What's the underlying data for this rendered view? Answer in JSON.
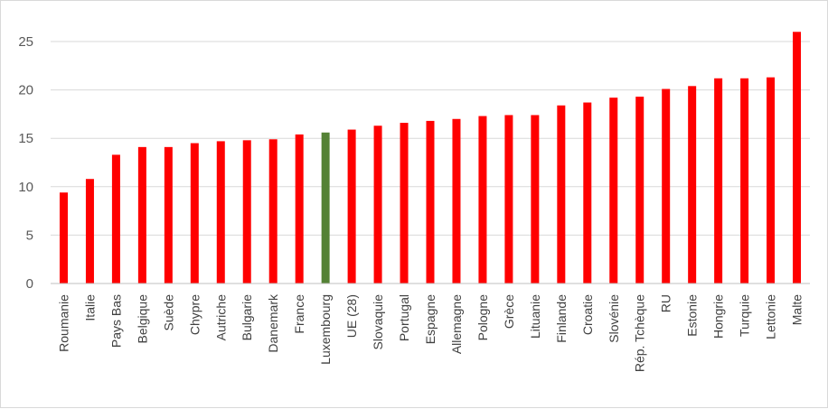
{
  "chart_data": {
    "type": "bar",
    "title": "",
    "xlabel": "",
    "ylabel": "",
    "ylim": [
      0,
      25
    ],
    "yticks": [
      0,
      5,
      10,
      15,
      20,
      25
    ],
    "grid": true,
    "legend": "none",
    "colors": {
      "default": "#ff0000",
      "highlight": "#548235",
      "grid": "#d9d9d9",
      "axis": "#bfbfbf"
    },
    "highlight_category": "Luxembourg",
    "categories": [
      "Roumanie",
      "Italie",
      "Pays Bas",
      "Belgique",
      "Suède",
      "Chypre",
      "Autriche",
      "Bulgarie",
      "Danemark",
      "France",
      "Luxembourg",
      "UE (28)",
      "Slovaquie",
      "Portugal",
      "Espagne",
      "Allemagne",
      "Pologne",
      "Grèce",
      "Lituanie",
      "Finlande",
      "Croatie",
      "Slovénie",
      "Rép. Tchèque",
      "RU",
      "Estonie",
      "Hongrie",
      "Turquie",
      "Lettonie",
      "Malte"
    ],
    "values": [
      9.4,
      10.8,
      13.3,
      14.1,
      14.1,
      14.5,
      14.7,
      14.8,
      14.9,
      15.4,
      15.6,
      15.9,
      16.3,
      16.6,
      16.8,
      17.0,
      17.3,
      17.4,
      17.4,
      18.4,
      18.7,
      19.2,
      19.3,
      20.1,
      20.4,
      21.2,
      21.2,
      21.3,
      26.0
    ]
  }
}
